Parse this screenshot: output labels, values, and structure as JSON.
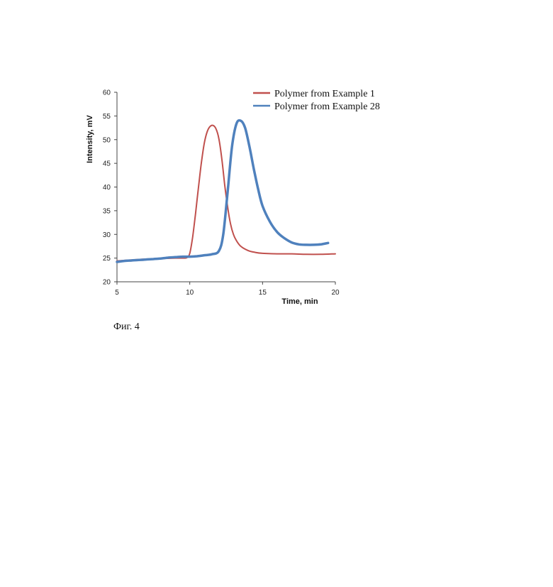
{
  "chart_data": {
    "type": "line",
    "title": "",
    "xlabel": "Time, min",
    "ylabel": "Intensity, mV",
    "xlim": [
      5,
      20
    ],
    "ylim": [
      20,
      60
    ],
    "xticks": [
      5,
      10,
      15,
      20
    ],
    "yticks": [
      20,
      25,
      30,
      35,
      40,
      45,
      50,
      55,
      60
    ],
    "grid": false,
    "legend_position": "top-right",
    "series": [
      {
        "name": "Polymer from Example 1",
        "color": "#c0504d",
        "x": [
          5,
          6,
          7,
          8,
          9,
          9.5,
          9.8,
          10.0,
          10.2,
          10.4,
          10.6,
          10.8,
          11.0,
          11.2,
          11.4,
          11.6,
          11.8,
          12.0,
          12.2,
          12.4,
          12.6,
          12.8,
          13.0,
          13.2,
          13.5,
          14.0,
          14.5,
          15,
          16,
          17,
          18,
          19,
          20
        ],
        "y": [
          24.4,
          24.6,
          24.8,
          24.9,
          25.0,
          25.0,
          25.1,
          26.0,
          29.5,
          34.5,
          40.0,
          45.2,
          49.3,
          51.7,
          52.8,
          53.0,
          52.3,
          50.2,
          46.0,
          40.5,
          35.8,
          32.2,
          30.0,
          28.7,
          27.5,
          26.6,
          26.2,
          26.0,
          25.9,
          25.9,
          25.8,
          25.8,
          25.9
        ]
      },
      {
        "name": "Polymer from Example 28",
        "color": "#4f81bd",
        "x": [
          5,
          5.5,
          6,
          6.5,
          7,
          7.5,
          8,
          8.5,
          9,
          9.5,
          10,
          10.5,
          11,
          11.5,
          12,
          12.3,
          12.6,
          12.9,
          13.2,
          13.5,
          13.8,
          14.1,
          14.4,
          14.7,
          15,
          15.5,
          16,
          16.5,
          17,
          17.5,
          18,
          18.5,
          19,
          19.5
        ],
        "y": [
          24.2,
          24.4,
          24.5,
          24.6,
          24.7,
          24.8,
          24.9,
          25.1,
          25.2,
          25.3,
          25.3,
          25.4,
          25.6,
          25.8,
          26.5,
          30.0,
          39.0,
          48.5,
          53.3,
          54.0,
          52.5,
          48.5,
          43.8,
          39.5,
          36.0,
          32.7,
          30.5,
          29.2,
          28.3,
          27.9,
          27.8,
          27.8,
          27.9,
          28.2
        ]
      }
    ]
  },
  "caption": "Фиг. 4"
}
